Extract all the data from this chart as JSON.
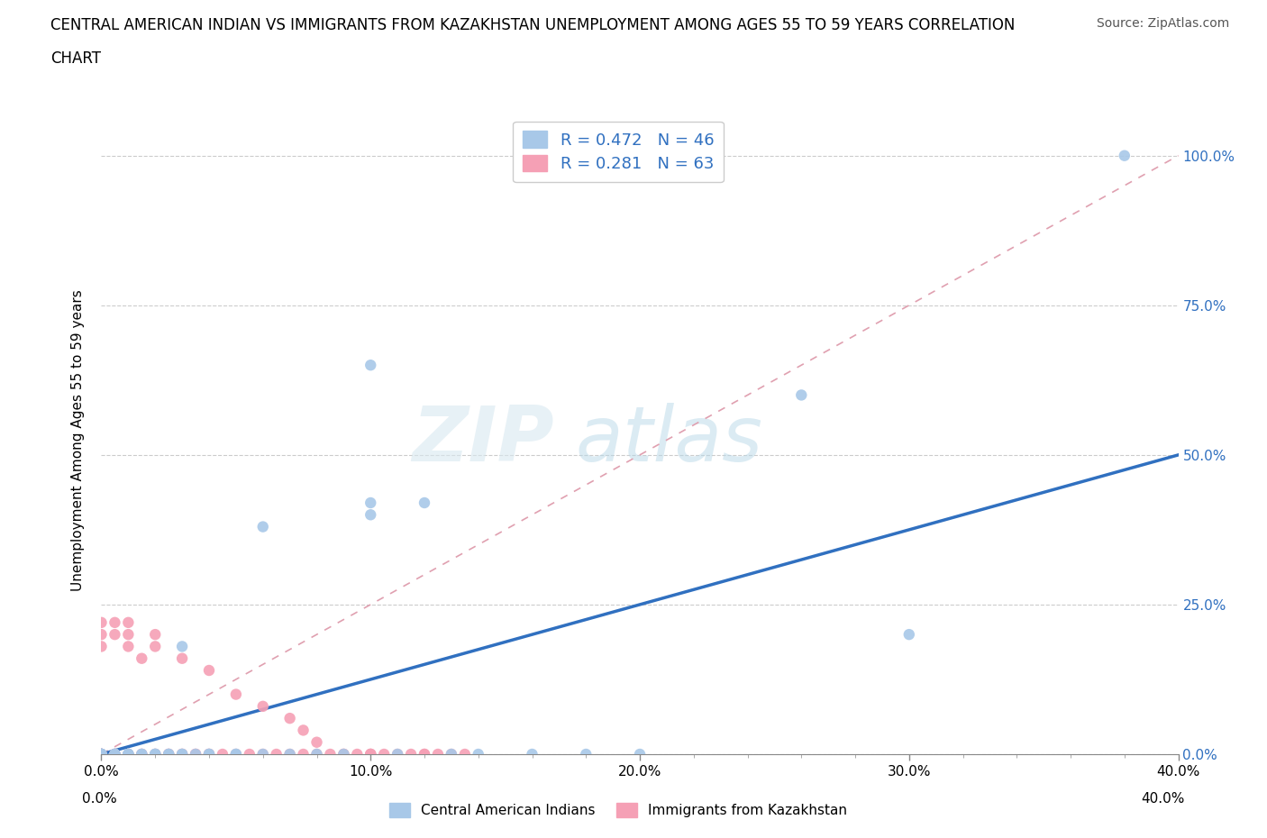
{
  "title_line1": "CENTRAL AMERICAN INDIAN VS IMMIGRANTS FROM KAZAKHSTAN UNEMPLOYMENT AMONG AGES 55 TO 59 YEARS CORRELATION",
  "title_line2": "CHART",
  "source_text": "Source: ZipAtlas.com",
  "ylabel": "Unemployment Among Ages 55 to 59 years",
  "xmin": 0.0,
  "xmax": 0.4,
  "ymin": 0.0,
  "ymax": 1.05,
  "xtick_labels": [
    "0.0%",
    "",
    "",
    "",
    "",
    "10.0%",
    "",
    "",
    "",
    "",
    "20.0%",
    "",
    "",
    "",
    "",
    "30.0%",
    "",
    "",
    "",
    "",
    "40.0%"
  ],
  "xtick_values": [
    0.0,
    0.02,
    0.04,
    0.06,
    0.08,
    0.1,
    0.12,
    0.14,
    0.16,
    0.18,
    0.2,
    0.22,
    0.24,
    0.26,
    0.28,
    0.3,
    0.32,
    0.34,
    0.36,
    0.38,
    0.4
  ],
  "ytick_labels": [
    "0.0%",
    "25.0%",
    "50.0%",
    "75.0%",
    "100.0%"
  ],
  "ytick_values": [
    0.0,
    0.25,
    0.5,
    0.75,
    1.0
  ],
  "legend_label1": "Central American Indians",
  "legend_label2": "Immigrants from Kazakhstan",
  "R1": 0.472,
  "N1": 46,
  "R2": 0.281,
  "N2": 63,
  "color1": "#a8c8e8",
  "color2": "#f5a0b5",
  "regression_color": "#3070c0",
  "diagonal_color": "#e0a0b0",
  "watermark_zip": "ZIP",
  "watermark_atlas": "atlas",
  "reg_line_x0": 0.0,
  "reg_line_y0": 0.0,
  "reg_line_x1": 0.4,
  "reg_line_y1": 0.5,
  "diag_line_x0": 0.0,
  "diag_line_y0": 0.0,
  "diag_line_x1": 0.4,
  "diag_line_y1": 1.0,
  "blue_x": [
    0.0,
    0.0,
    0.0,
    0.0,
    0.0,
    0.0,
    0.005,
    0.005,
    0.005,
    0.01,
    0.01,
    0.01,
    0.01,
    0.015,
    0.015,
    0.02,
    0.02,
    0.02,
    0.025,
    0.025,
    0.03,
    0.03,
    0.03,
    0.035,
    0.04,
    0.04,
    0.05,
    0.05,
    0.06,
    0.06,
    0.07,
    0.08,
    0.09,
    0.1,
    0.1,
    0.1,
    0.11,
    0.12,
    0.13,
    0.14,
    0.16,
    0.18,
    0.2,
    0.26,
    0.3,
    0.38
  ],
  "blue_y": [
    0.0,
    0.0,
    0.0,
    0.0,
    0.0,
    0.0,
    0.0,
    0.0,
    0.0,
    0.0,
    0.0,
    0.0,
    0.0,
    0.0,
    0.0,
    0.0,
    0.0,
    0.0,
    0.0,
    0.0,
    0.0,
    0.0,
    0.18,
    0.0,
    0.0,
    0.0,
    0.0,
    0.0,
    0.38,
    0.0,
    0.0,
    0.0,
    0.0,
    0.65,
    0.4,
    0.42,
    0.0,
    0.42,
    0.0,
    0.0,
    0.0,
    0.0,
    0.0,
    0.6,
    0.2,
    1.0
  ],
  "pink_x": [
    0.0,
    0.0,
    0.0,
    0.0,
    0.0,
    0.0,
    0.0,
    0.0,
    0.005,
    0.005,
    0.005,
    0.005,
    0.005,
    0.01,
    0.01,
    0.01,
    0.01,
    0.01,
    0.015,
    0.015,
    0.015,
    0.02,
    0.02,
    0.02,
    0.02,
    0.025,
    0.025,
    0.03,
    0.03,
    0.03,
    0.035,
    0.035,
    0.04,
    0.04,
    0.04,
    0.045,
    0.05,
    0.05,
    0.055,
    0.06,
    0.06,
    0.065,
    0.07,
    0.07,
    0.075,
    0.075,
    0.08,
    0.08,
    0.085,
    0.09,
    0.09,
    0.095,
    0.1,
    0.1,
    0.1,
    0.105,
    0.11,
    0.115,
    0.12,
    0.12,
    0.125,
    0.13,
    0.135
  ],
  "pink_y": [
    0.0,
    0.0,
    0.0,
    0.0,
    0.0,
    0.2,
    0.22,
    0.18,
    0.0,
    0.0,
    0.0,
    0.22,
    0.2,
    0.0,
    0.0,
    0.18,
    0.2,
    0.22,
    0.0,
    0.0,
    0.16,
    0.0,
    0.0,
    0.18,
    0.2,
    0.0,
    0.0,
    0.0,
    0.0,
    0.16,
    0.0,
    0.0,
    0.0,
    0.0,
    0.14,
    0.0,
    0.0,
    0.1,
    0.0,
    0.0,
    0.08,
    0.0,
    0.0,
    0.06,
    0.0,
    0.04,
    0.0,
    0.02,
    0.0,
    0.0,
    0.0,
    0.0,
    0.0,
    0.0,
    0.0,
    0.0,
    0.0,
    0.0,
    0.0,
    0.0,
    0.0,
    0.0,
    0.0
  ]
}
